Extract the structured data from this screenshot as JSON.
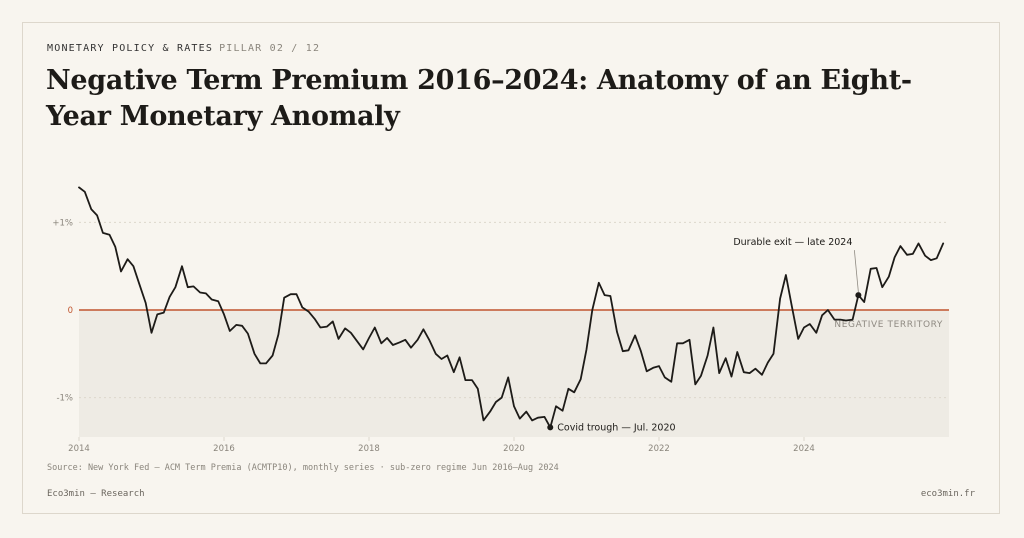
{
  "header": {
    "kicker": "MONETARY POLICY & RATES",
    "pillar": "PILLAR 02 / 12",
    "title": "Negative Term Premium 2016–2024: Anatomy of an Eight-Year Monetary Anomaly"
  },
  "footer": {
    "source": "Source: New York Fed — ACM Term Premia (ACMTP10), monthly series · sub-zero regime Jun 2016–Aug 2024",
    "brand": "Eco3min — Research",
    "site": "eco3min.fr"
  },
  "colors": {
    "line": "#1d1b18",
    "zero_line": "#c0552f",
    "negative_fill": "#eeebe4",
    "grid": "#ddd7cc",
    "axis_text": "#8a857c"
  },
  "chart_data": {
    "type": "line",
    "title": "",
    "xlabel": "",
    "ylabel": "",
    "xlim": [
      2014,
      2026
    ],
    "ylim": [
      -1.45,
      1.45
    ],
    "x_ticks": [
      {
        "value": 2014,
        "label": "2014"
      },
      {
        "value": 2016,
        "label": "2016"
      },
      {
        "value": 2018,
        "label": "2018"
      },
      {
        "value": 2020,
        "label": "2020"
      },
      {
        "value": 2022,
        "label": "2022"
      },
      {
        "value": 2024,
        "label": "2024"
      }
    ],
    "y_ticks": [
      {
        "value": 1,
        "label": "+1%",
        "grid": true
      },
      {
        "value": 0,
        "label": "0",
        "zero": true
      },
      {
        "value": -1,
        "label": "-1%",
        "grid": true
      }
    ],
    "shaded_region_label": "NEGATIVE TERRITORY",
    "series": [
      {
        "points": [
          [
            2014.0,
            1.4
          ],
          [
            2014.08,
            1.35
          ],
          [
            2014.17,
            1.15
          ],
          [
            2014.25,
            1.08
          ],
          [
            2014.33,
            0.88
          ],
          [
            2014.42,
            0.86
          ],
          [
            2014.5,
            0.72
          ],
          [
            2014.58,
            0.44
          ],
          [
            2014.67,
            0.58
          ],
          [
            2014.75,
            0.5
          ],
          [
            2014.83,
            0.3
          ],
          [
            2014.92,
            0.08
          ],
          [
            2015.0,
            -0.26
          ],
          [
            2015.08,
            -0.05
          ],
          [
            2015.17,
            -0.03
          ],
          [
            2015.25,
            0.15
          ],
          [
            2015.33,
            0.26
          ],
          [
            2015.42,
            0.5
          ],
          [
            2015.5,
            0.26
          ],
          [
            2015.58,
            0.27
          ],
          [
            2015.67,
            0.2
          ],
          [
            2015.75,
            0.19
          ],
          [
            2015.83,
            0.12
          ],
          [
            2015.92,
            0.1
          ],
          [
            2016.0,
            -0.05
          ],
          [
            2016.08,
            -0.24
          ],
          [
            2016.17,
            -0.17
          ],
          [
            2016.25,
            -0.18
          ],
          [
            2016.33,
            -0.27
          ],
          [
            2016.42,
            -0.5
          ],
          [
            2016.5,
            -0.61
          ],
          [
            2016.58,
            -0.61
          ],
          [
            2016.67,
            -0.52
          ],
          [
            2016.75,
            -0.28
          ],
          [
            2016.83,
            0.14
          ],
          [
            2016.92,
            0.18
          ],
          [
            2017.0,
            0.18
          ],
          [
            2017.08,
            0.03
          ],
          [
            2017.17,
            -0.02
          ],
          [
            2017.25,
            -0.1
          ],
          [
            2017.33,
            -0.2
          ],
          [
            2017.42,
            -0.19
          ],
          [
            2017.5,
            -0.13
          ],
          [
            2017.58,
            -0.33
          ],
          [
            2017.67,
            -0.21
          ],
          [
            2017.75,
            -0.26
          ],
          [
            2017.83,
            -0.35
          ],
          [
            2017.92,
            -0.45
          ],
          [
            2018.0,
            -0.32
          ],
          [
            2018.08,
            -0.2
          ],
          [
            2018.17,
            -0.38
          ],
          [
            2018.25,
            -0.32
          ],
          [
            2018.33,
            -0.4
          ],
          [
            2018.42,
            -0.37
          ],
          [
            2018.5,
            -0.34
          ],
          [
            2018.58,
            -0.43
          ],
          [
            2018.67,
            -0.34
          ],
          [
            2018.75,
            -0.22
          ],
          [
            2018.83,
            -0.34
          ],
          [
            2018.92,
            -0.5
          ],
          [
            2019.0,
            -0.56
          ],
          [
            2019.08,
            -0.52
          ],
          [
            2019.17,
            -0.71
          ],
          [
            2019.25,
            -0.54
          ],
          [
            2019.33,
            -0.8
          ],
          [
            2019.42,
            -0.8
          ],
          [
            2019.5,
            -0.9
          ],
          [
            2019.58,
            -1.26
          ],
          [
            2019.67,
            -1.16
          ],
          [
            2019.75,
            -1.05
          ],
          [
            2019.83,
            -1.0
          ],
          [
            2019.92,
            -0.77
          ],
          [
            2020.0,
            -1.1
          ],
          [
            2020.08,
            -1.24
          ],
          [
            2020.17,
            -1.16
          ],
          [
            2020.25,
            -1.26
          ],
          [
            2020.33,
            -1.23
          ],
          [
            2020.42,
            -1.22
          ],
          [
            2020.5,
            -1.34
          ],
          [
            2020.58,
            -1.1
          ],
          [
            2020.67,
            -1.15
          ],
          [
            2020.75,
            -0.9
          ],
          [
            2020.83,
            -0.94
          ],
          [
            2020.92,
            -0.79
          ],
          [
            2021.0,
            -0.45
          ],
          [
            2021.08,
            0.0
          ],
          [
            2021.17,
            0.31
          ],
          [
            2021.25,
            0.17
          ],
          [
            2021.33,
            0.16
          ],
          [
            2021.42,
            -0.25
          ],
          [
            2021.5,
            -0.47
          ],
          [
            2021.58,
            -0.46
          ],
          [
            2021.67,
            -0.29
          ],
          [
            2021.75,
            -0.47
          ],
          [
            2021.83,
            -0.7
          ],
          [
            2021.92,
            -0.66
          ],
          [
            2022.0,
            -0.64
          ],
          [
            2022.08,
            -0.77
          ],
          [
            2022.17,
            -0.82
          ],
          [
            2022.25,
            -0.38
          ],
          [
            2022.33,
            -0.38
          ],
          [
            2022.42,
            -0.34
          ],
          [
            2022.5,
            -0.85
          ],
          [
            2022.58,
            -0.75
          ],
          [
            2022.67,
            -0.52
          ],
          [
            2022.75,
            -0.2
          ],
          [
            2022.83,
            -0.72
          ],
          [
            2022.92,
            -0.55
          ],
          [
            2023.0,
            -0.76
          ],
          [
            2023.08,
            -0.48
          ],
          [
            2023.17,
            -0.71
          ],
          [
            2023.25,
            -0.72
          ],
          [
            2023.33,
            -0.67
          ],
          [
            2023.42,
            -0.74
          ],
          [
            2023.5,
            -0.6
          ],
          [
            2023.58,
            -0.5
          ],
          [
            2023.67,
            0.13
          ],
          [
            2023.75,
            0.4
          ],
          [
            2023.83,
            0.05
          ],
          [
            2023.92,
            -0.33
          ],
          [
            2024.0,
            -0.2
          ],
          [
            2024.08,
            -0.16
          ],
          [
            2024.17,
            -0.26
          ],
          [
            2024.25,
            -0.06
          ],
          [
            2024.33,
            0.0
          ],
          [
            2024.42,
            -0.11
          ],
          [
            2024.5,
            -0.11
          ],
          [
            2024.58,
            -0.12
          ],
          [
            2024.67,
            -0.11
          ],
          [
            2024.75,
            0.17
          ],
          [
            2024.83,
            0.09
          ],
          [
            2024.92,
            0.47
          ],
          [
            2025.0,
            0.48
          ],
          [
            2025.08,
            0.26
          ],
          [
            2025.17,
            0.38
          ],
          [
            2025.25,
            0.6
          ],
          [
            2025.33,
            0.73
          ],
          [
            2025.42,
            0.63
          ],
          [
            2025.5,
            0.64
          ],
          [
            2025.58,
            0.76
          ],
          [
            2025.67,
            0.62
          ],
          [
            2025.75,
            0.57
          ],
          [
            2025.83,
            0.59
          ],
          [
            2025.92,
            0.76
          ]
        ]
      }
    ],
    "annotations": [
      {
        "text": "Covid trough — Jul. 2020",
        "x": 2020.5,
        "y": -1.34
      },
      {
        "text": "Durable exit — late 2024",
        "x": 2024.75,
        "y": 0.17
      }
    ]
  }
}
